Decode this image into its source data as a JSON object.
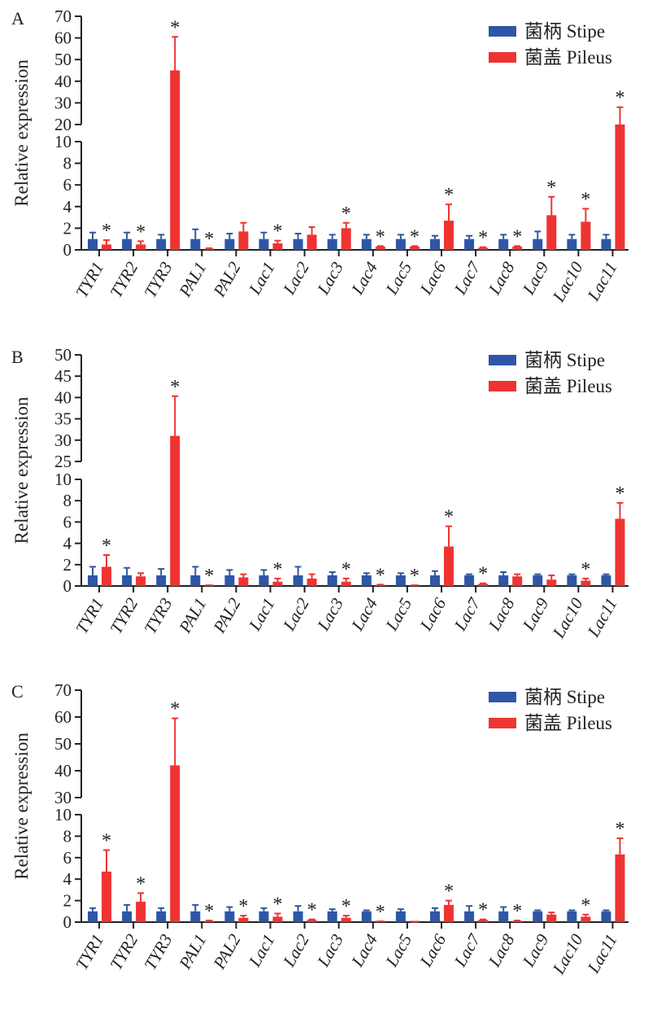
{
  "colors": {
    "stipe": "#2F56A6",
    "pileus": "#EE3432"
  },
  "chart_data": [
    {
      "panel": "A",
      "type": "bar",
      "ylabel": "Relative expression",
      "y_axis_break": true,
      "ylim_lower": [
        0,
        10
      ],
      "yticks_lower": [
        0,
        2,
        4,
        6,
        8,
        10
      ],
      "ylim_upper": [
        20,
        70
      ],
      "yticks_upper": [
        20,
        30,
        40,
        50,
        60,
        70
      ],
      "legend": [
        "菌柄 Stipe",
        "菌盖 Pileus"
      ],
      "legend_position": "top-right",
      "categories": [
        "TYR1",
        "TYR2",
        "TYR3",
        "PAL1",
        "PAL2",
        "Lac1",
        "Lac2",
        "Lac3",
        "Lac4",
        "Lac5",
        "Lac6",
        "Lac7",
        "Lac8",
        "Lac9",
        "Lac10",
        "Lac11"
      ],
      "series": [
        {
          "name": "菌柄 Stipe",
          "values": [
            1,
            1,
            1,
            1,
            1,
            1,
            1,
            1,
            1,
            1,
            1,
            1,
            1,
            1,
            1,
            1
          ],
          "error": [
            0.6,
            0.6,
            0.4,
            0.9,
            0.5,
            0.6,
            0.5,
            0.4,
            0.4,
            0.4,
            0.3,
            0.3,
            0.4,
            0.7,
            0.4,
            0.4
          ]
        },
        {
          "name": "菌盖 Pileus",
          "values": [
            0.5,
            0.5,
            45,
            0.1,
            1.7,
            0.6,
            1.4,
            2.0,
            0.3,
            0.3,
            2.7,
            0.2,
            0.3,
            3.2,
            2.6,
            20
          ],
          "error": [
            0.4,
            0.3,
            15.5,
            0.05,
            0.8,
            0.25,
            0.7,
            0.5,
            0.05,
            0.05,
            1.5,
            0.05,
            0.05,
            1.7,
            1.2,
            8
          ]
        }
      ],
      "significant": [
        true,
        true,
        true,
        true,
        false,
        true,
        false,
        true,
        true,
        true,
        true,
        true,
        true,
        true,
        true,
        true
      ]
    },
    {
      "panel": "B",
      "type": "bar",
      "ylabel": "Relative expression",
      "y_axis_break": true,
      "ylim_lower": [
        0,
        10
      ],
      "yticks_lower": [
        0,
        2,
        4,
        6,
        8,
        10
      ],
      "ylim_upper": [
        25,
        50
      ],
      "yticks_upper": [
        25,
        30,
        35,
        40,
        45,
        50
      ],
      "legend": [
        "菌柄 Stipe",
        "菌盖 Pileus"
      ],
      "legend_position": "top-right",
      "categories": [
        "TYR1",
        "TYR2",
        "TYR3",
        "PAL1",
        "PAL2",
        "Lac1",
        "Lac2",
        "Lac3",
        "Lac4",
        "Lac5",
        "Lac6",
        "Lac7",
        "Lac8",
        "Lac9",
        "Lac10",
        "Lac11"
      ],
      "series": [
        {
          "name": "菌柄 Stipe",
          "values": [
            1,
            1,
            1,
            1,
            1,
            1,
            1,
            1,
            1,
            1,
            1,
            1,
            1,
            1,
            1,
            1
          ],
          "error": [
            0.8,
            0.7,
            0.6,
            0.8,
            0.5,
            0.5,
            0.8,
            0.3,
            0.2,
            0.2,
            0.4,
            0.1,
            0.3,
            0.1,
            0.1,
            0.1
          ]
        },
        {
          "name": "菌盖 Pileus",
          "values": [
            1.8,
            0.9,
            31,
            0.05,
            0.8,
            0.4,
            0.7,
            0.4,
            0.1,
            0.05,
            3.7,
            0.2,
            0.9,
            0.6,
            0.5,
            6.3
          ],
          "error": [
            1.1,
            0.3,
            9.3,
            0.02,
            0.3,
            0.3,
            0.4,
            0.3,
            0.03,
            0.02,
            1.9,
            0.05,
            0.2,
            0.4,
            0.2,
            1.5
          ]
        }
      ],
      "significant": [
        true,
        false,
        true,
        true,
        false,
        true,
        false,
        true,
        true,
        true,
        true,
        true,
        false,
        false,
        true,
        true
      ]
    },
    {
      "panel": "C",
      "type": "bar",
      "ylabel": "Relative expression",
      "y_axis_break": true,
      "ylim_lower": [
        0,
        10
      ],
      "yticks_lower": [
        0,
        2,
        4,
        6,
        8,
        10
      ],
      "ylim_upper": [
        30,
        70
      ],
      "yticks_upper": [
        30,
        40,
        50,
        60,
        70
      ],
      "legend": [
        "菌柄 Stipe",
        "菌盖 Pileus"
      ],
      "legend_position": "top-right",
      "categories": [
        "TYR1",
        "TYR2",
        "TYR3",
        "PAL1",
        "PAL2",
        "Lac1",
        "Lac2",
        "Lac3",
        "Lac4",
        "Lac5",
        "Lac6",
        "Lac7",
        "Lac8",
        "Lac9",
        "Lac10",
        "Lac11"
      ],
      "series": [
        {
          "name": "菌柄 Stipe",
          "values": [
            1,
            1,
            1,
            1,
            1,
            1,
            1,
            1,
            1,
            1,
            1,
            1,
            1,
            1,
            1,
            1
          ],
          "error": [
            0.3,
            0.6,
            0.3,
            0.6,
            0.4,
            0.3,
            0.5,
            0.2,
            0.1,
            0.2,
            0.3,
            0.5,
            0.4,
            0.1,
            0.1,
            0.1
          ]
        },
        {
          "name": "菌盖 Pileus",
          "values": [
            4.7,
            1.9,
            42,
            0.1,
            0.4,
            0.5,
            0.2,
            0.4,
            0.05,
            0.02,
            1.6,
            0.2,
            0.1,
            0.7,
            0.5,
            6.3
          ],
          "error": [
            2.0,
            0.8,
            17.5,
            0.05,
            0.2,
            0.3,
            0.05,
            0.2,
            0.02,
            0.01,
            0.4,
            0.05,
            0.05,
            0.2,
            0.2,
            1.5
          ]
        }
      ],
      "significant": [
        true,
        true,
        true,
        true,
        true,
        true,
        true,
        true,
        true,
        false,
        true,
        true,
        true,
        false,
        true,
        true
      ]
    }
  ]
}
